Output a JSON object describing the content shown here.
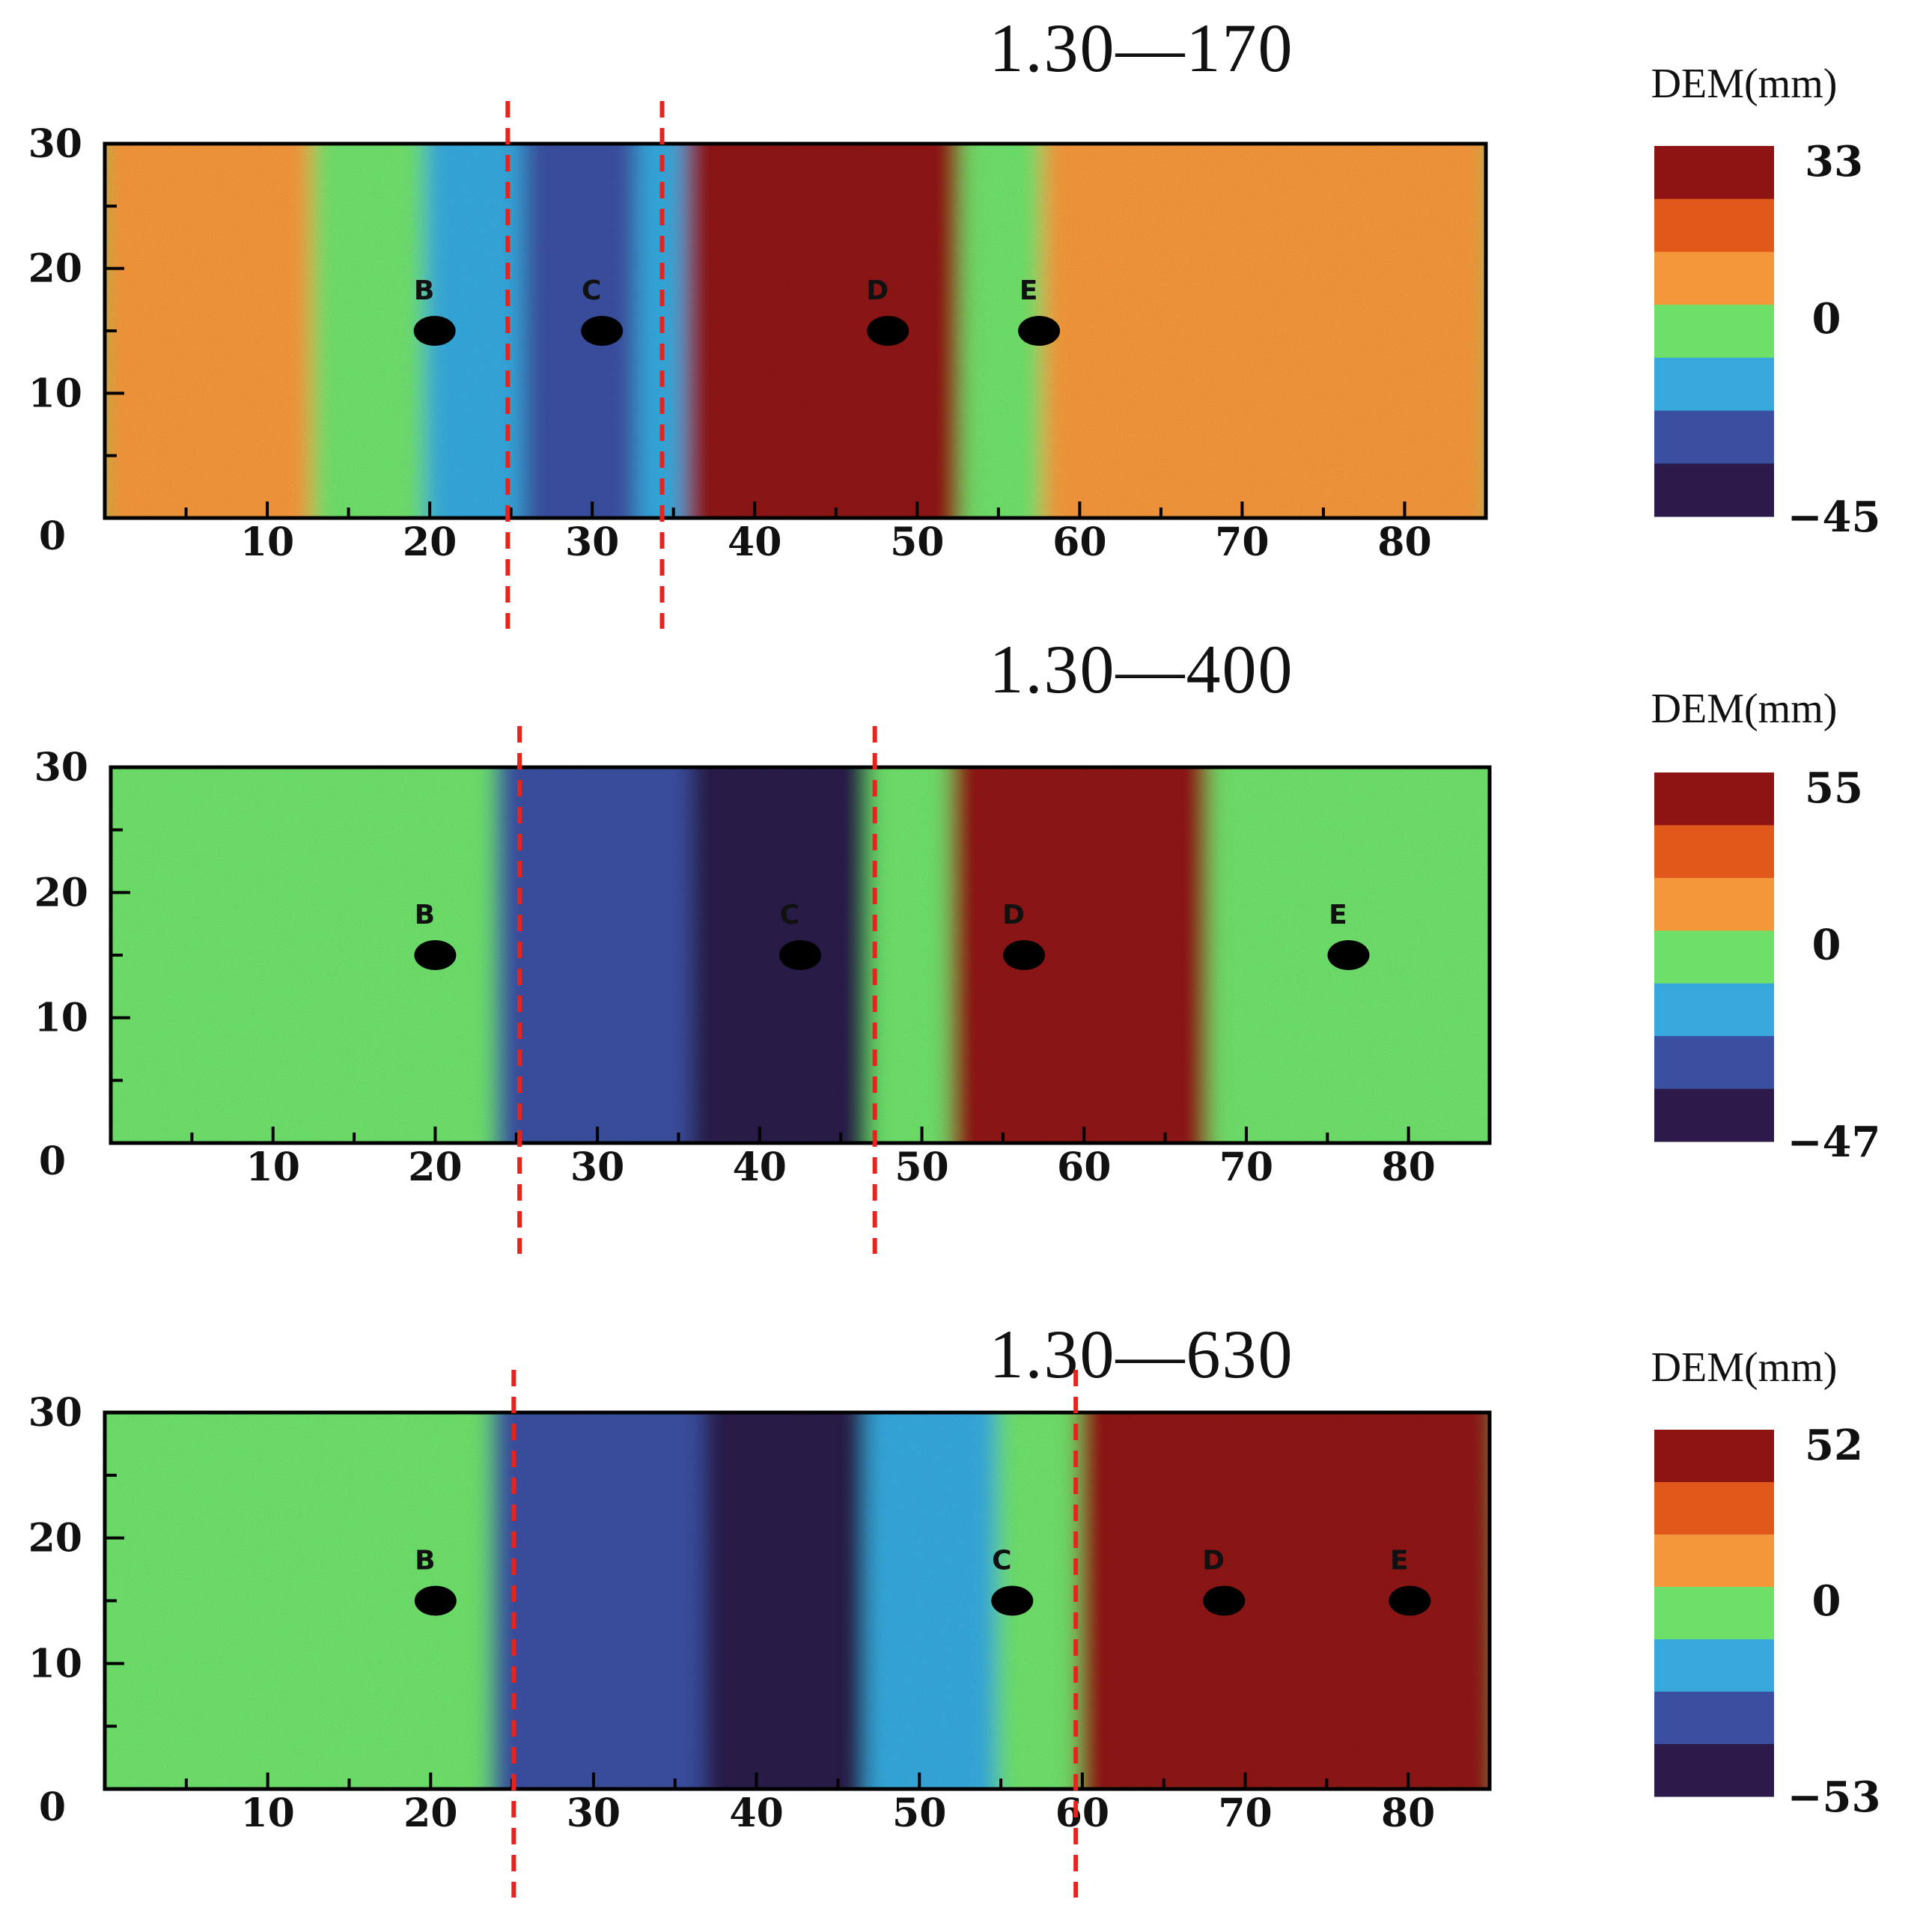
{
  "chart_data": {
    "type": "heatmap",
    "colors": [
      "#2b1a4a",
      "#3a4fa0",
      "#36a8dc",
      "#6ee06a",
      "#f4963a",
      "#e2581c",
      "#8e1414"
    ],
    "panels": [
      {
        "title": "1.30—170",
        "colorbar": {
          "title": "DEM(mm)",
          "max_label": "33",
          "zero_label": "0",
          "min_label": "−45",
          "max": 33,
          "min": -45
        },
        "x_ticks": [
          "10",
          "20",
          "30",
          "40",
          "50",
          "60",
          "70",
          "80"
        ],
        "y_ticks": [
          "30",
          "20",
          "10"
        ],
        "origin_label": "0",
        "xlim": [
          0,
          85
        ],
        "ylim": [
          0,
          30
        ],
        "divider_x": [
          24.8,
          34.3
        ],
        "points": [
          {
            "label": "B",
            "x": 20.3,
            "y": 15
          },
          {
            "label": "C",
            "x": 30.6,
            "y": 15
          },
          {
            "label": "D",
            "x": 48.2,
            "y": 15
          },
          {
            "label": "E",
            "x": 57.5,
            "y": 15
          }
        ],
        "zones": [
          {
            "x0": 0,
            "x1": 13,
            "value": 6
          },
          {
            "x0": 13,
            "x1": 20,
            "value": 0
          },
          {
            "x0": 20,
            "x1": 26,
            "value": -14
          },
          {
            "x0": 26,
            "x1": 33,
            "value": -26
          },
          {
            "x0": 33,
            "x1": 36,
            "value": -10
          },
          {
            "x0": 36,
            "x1": 53,
            "value": 24
          },
          {
            "x0": 53,
            "x1": 58,
            "value": 4
          },
          {
            "x0": 58,
            "x1": 85,
            "value": 10
          }
        ]
      },
      {
        "title": "1.30—400",
        "colorbar": {
          "title": "DEM(mm)",
          "max_label": "55",
          "zero_label": "0",
          "min_label": "−47",
          "max": 55,
          "min": -47
        },
        "x_ticks": [
          "10",
          "20",
          "30",
          "40",
          "50",
          "60",
          "70",
          "80"
        ],
        "y_ticks": [
          "30",
          "20",
          "10"
        ],
        "origin_label": "0",
        "xlim": [
          0,
          85
        ],
        "ylim": [
          0,
          30
        ],
        "divider_x": [
          25.2,
          47.1
        ],
        "points": [
          {
            "label": "B",
            "x": 20.0,
            "y": 15
          },
          {
            "label": "C",
            "x": 42.5,
            "y": 15
          },
          {
            "label": "D",
            "x": 56.3,
            "y": 15
          },
          {
            "label": "E",
            "x": 76.3,
            "y": 15
          }
        ],
        "zones": [
          {
            "x0": 0,
            "x1": 24,
            "value": 3
          },
          {
            "x0": 24,
            "x1": 36,
            "value": -30
          },
          {
            "x0": 36,
            "x1": 47,
            "value": -38
          },
          {
            "x0": 47,
            "x1": 52,
            "value": -6
          },
          {
            "x0": 52,
            "x1": 68,
            "value": 40
          },
          {
            "x0": 68,
            "x1": 85,
            "value": 2
          }
        ]
      },
      {
        "title": "1.30—630",
        "colorbar": {
          "title": "DEM(mm)",
          "max_label": "52",
          "zero_label": "0",
          "min_label": "−53",
          "max": 52,
          "min": -53
        },
        "x_ticks": [
          "10",
          "20",
          "30",
          "40",
          "50",
          "60",
          "70",
          "80"
        ],
        "y_ticks": [
          "30",
          "20",
          "10"
        ],
        "origin_label": "0",
        "xlim": [
          0,
          85
        ],
        "ylim": [
          0,
          30
        ],
        "divider_x": [
          25.1,
          59.6
        ],
        "points": [
          {
            "label": "B",
            "x": 20.3,
            "y": 15
          },
          {
            "label": "C",
            "x": 55.7,
            "y": 15
          },
          {
            "label": "D",
            "x": 68.7,
            "y": 15
          },
          {
            "label": "E",
            "x": 80.1,
            "y": 15
          }
        ],
        "zones": [
          {
            "x0": 0,
            "x1": 24,
            "value": 3
          },
          {
            "x0": 24,
            "x1": 37,
            "value": -28
          },
          {
            "x0": 37,
            "x1": 47,
            "value": -40
          },
          {
            "x0": 47,
            "x1": 55,
            "value": -12
          },
          {
            "x0": 55,
            "x1": 60,
            "value": 6
          },
          {
            "x0": 60,
            "x1": 85,
            "value": 38
          }
        ]
      }
    ]
  }
}
